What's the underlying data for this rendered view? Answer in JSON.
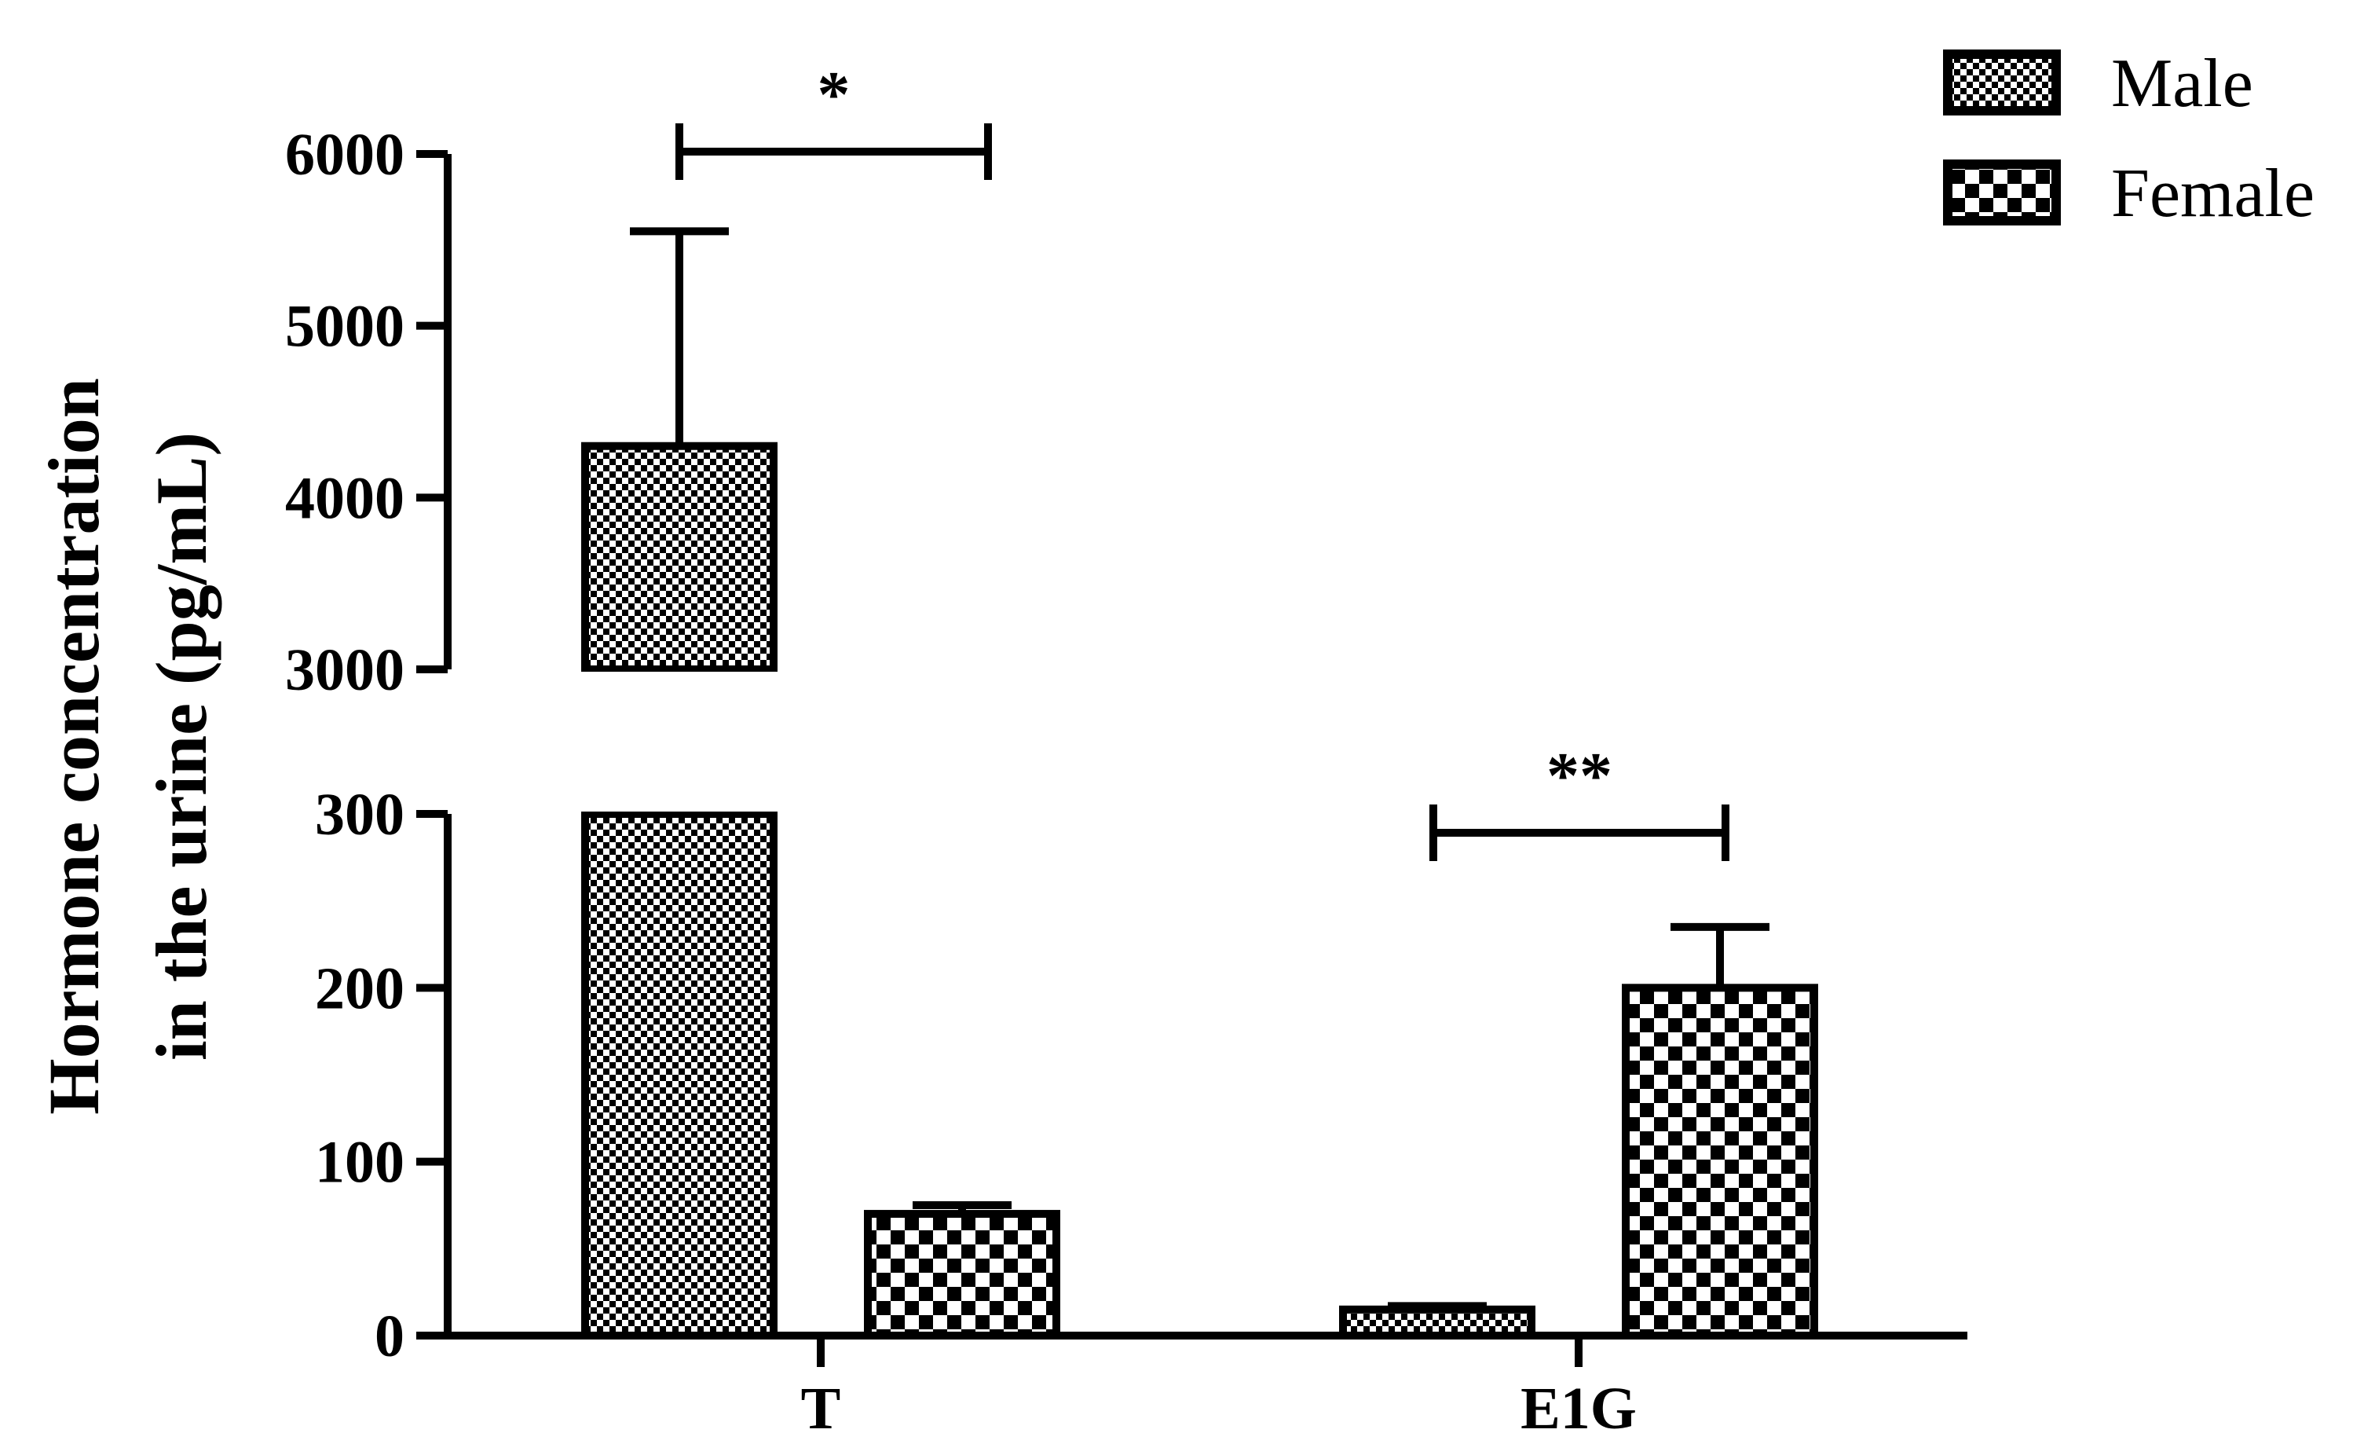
{
  "chart_data": {
    "type": "bar",
    "ylabel": [
      "Hormone concentration",
      "in the urine (pg/mL)"
    ],
    "categories": [
      "T",
      "E1G"
    ],
    "series": [
      {
        "name": "Male",
        "pattern": "fine-checker",
        "values": [
          4300,
          15
        ],
        "errors": [
          1250,
          2
        ]
      },
      {
        "name": "Female",
        "pattern": "coarse-checker",
        "values": [
          70,
          200
        ],
        "errors": [
          5,
          35
        ]
      }
    ],
    "axis_break": {
      "lower_range": [
        0,
        300
      ],
      "upper_range": [
        3000,
        6000
      ]
    },
    "yticks_lower": [
      "0",
      "100",
      "200",
      "300"
    ],
    "yticks_upper": [
      "3000",
      "4000",
      "5000",
      "6000"
    ],
    "significance": [
      {
        "category": "T",
        "label": "*"
      },
      {
        "category": "E1G",
        "label": "**"
      }
    ],
    "legend_position": "top-right",
    "grid": false
  }
}
